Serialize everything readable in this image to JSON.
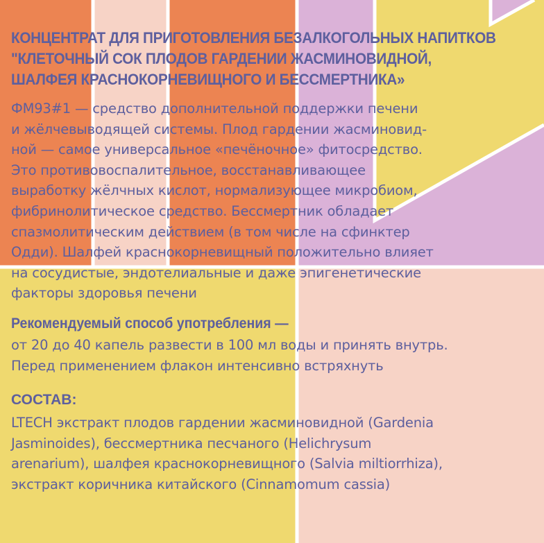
{
  "colors": {
    "orange": "#ec8452",
    "peach": "#f7d3c6",
    "lilac": "#dbb2d8",
    "yellow": "#efd96f",
    "text": "#5d5f9e",
    "lines": "#ffffff"
  },
  "title": [
    "КОНЦЕНТРАТ ДЛЯ ПРИГОТОВЛЕНИЯ БЕЗАЛКОГОЛЬНЫХ НАПИТКОВ",
    "\"КЛЕТОЧНЫЙ СОК ПЛОДОВ ГАРДЕНИИ ЖАСМИНОВИДНОЙ,",
    "ШАЛФЕЯ КРАСНОКОРНЕВИЩНОГО И БЕССМЕРТНИКА»"
  ],
  "description": [
    "ФМ93#1 — средство дополнительной поддержки печени",
    "и жёлчевыводящей системы. Плод гардении жасминовид-",
    "ной — самое универсальное «печёночное» фитосредство.",
    "Это противовоспалительное, восстанавливающее",
    "выработку жёлчных кислот, нормализующее микробиом,",
    "фибринолитическое средство. Бессмертник обладает",
    "спазмолитическим действием (в том числе на сфинктер",
    "Одди). Шалфей краснокорневищный положительно влияет",
    "на сосудистые, эндотелиальные и даже эпигенетические",
    "факторы здоровья печени"
  ],
  "usage_heading": "Рекомендуемый способ употребления —",
  "usage": [
    "от 20 до 40 капель развести в 100 мл воды и принять внутрь.",
    "Перед применением флакон интенсивно встряхнуть"
  ],
  "composition_heading": "СОСТАВ:",
  "composition": [
    "LTECH экстракт плодов гардении жасминовидной (Gardenia",
    "Jasminoides), бессмертника песчаного (Helichrysum",
    "arenarium), шалфея краснокорневищного (Salvia miltiorrhiza),",
    "экстракт коричника китайского (Cinnamomum cassia)"
  ]
}
